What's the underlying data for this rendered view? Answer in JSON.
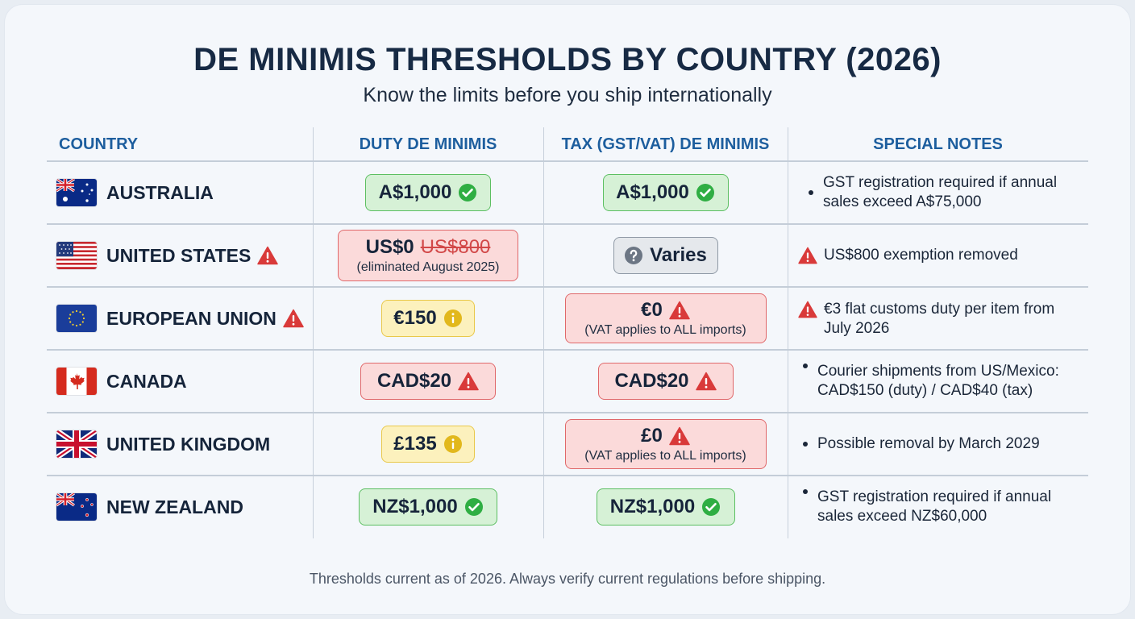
{
  "title": "DE MINIMIS THRESHOLDS BY COUNTRY (2026)",
  "subtitle": "Know the limits before you ship internationally",
  "headers": {
    "country": "COUNTRY",
    "duty": "DUTY DE MINIMIS",
    "tax": "TAX (GST/VAT) DE MINIMIS",
    "notes": "SPECIAL NOTES"
  },
  "rows": [
    {
      "country": "AUSTRALIA",
      "flag": "australia-flag",
      "duty": "A$1,000",
      "duty_status": "ok",
      "tax": "A$1,000",
      "tax_status": "ok",
      "note": "GST registration required if annual sales exceed A$75,000"
    },
    {
      "country": "UNITED STATES",
      "flag": "us-flag",
      "duty": "US$0",
      "duty_old": "US$800",
      "duty_sub": "(eliminated August 2025)",
      "duty_status": "alert",
      "tax": "Varies",
      "tax_status": "unknown",
      "note": "US$800 exemption removed"
    },
    {
      "country": "EUROPEAN UNION",
      "flag": "eu-flag",
      "duty": "€150",
      "duty_status": "info",
      "tax": "€0",
      "tax_sub": "(VAT applies to ALL imports)",
      "tax_status": "alert",
      "note": "€3 flat customs duty per item from July 2026"
    },
    {
      "country": "CANADA",
      "flag": "canada-flag",
      "duty": "CAD$20",
      "duty_status": "alert",
      "tax": "CAD$20",
      "tax_status": "alert",
      "note": "Courier shipments from US/Mexico: CAD$150 (duty) / CAD$40 (tax)"
    },
    {
      "country": "UNITED KINGDOM",
      "flag": "uk-flag",
      "duty": "£135",
      "duty_status": "info",
      "tax": "£0",
      "tax_sub": "(VAT applies to ALL imports)",
      "tax_status": "alert",
      "note": "Possible removal by March 2029"
    },
    {
      "country": "NEW ZEALAND",
      "flag": "nz-flag",
      "duty": "NZ$1,000",
      "duty_status": "ok",
      "tax": "NZ$1,000",
      "tax_status": "ok",
      "note": "GST registration required if annual sales exceed NZ$60,000"
    }
  ],
  "colors": {
    "ok": "#2fae43",
    "alert": "#d93a3a",
    "info": "#e2b81c",
    "unknown": "#6c7684",
    "header": "#1d5e9e"
  },
  "footer": "Thresholds current as of 2026. Always verify current regulations before shipping."
}
